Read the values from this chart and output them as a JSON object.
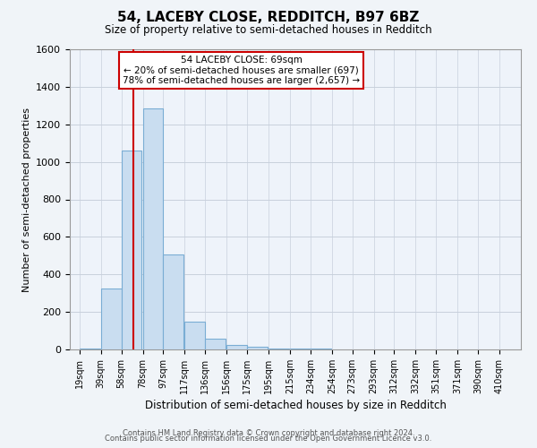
{
  "title": "54, LACEBY CLOSE, REDDITCH, B97 6BZ",
  "subtitle": "Size of property relative to semi-detached houses in Redditch",
  "xlabel": "Distribution of semi-detached houses by size in Redditch",
  "ylabel": "Number of semi-detached properties",
  "bar_left_edges": [
    19,
    39,
    58,
    78,
    97,
    117,
    136,
    156,
    175,
    195,
    215,
    234
  ],
  "bar_heights": [
    5,
    325,
    1060,
    1285,
    505,
    150,
    55,
    25,
    15,
    5,
    5,
    3
  ],
  "bar_widths": [
    19,
    19,
    19,
    19,
    19,
    19,
    19,
    19,
    19,
    19,
    19,
    19
  ],
  "bar_color": "#c9ddf0",
  "bar_edgecolor": "#7aadd4",
  "ylim": [
    0,
    1600
  ],
  "yticks": [
    0,
    200,
    400,
    600,
    800,
    1000,
    1200,
    1400,
    1600
  ],
  "xtick_positions": [
    19,
    39,
    58,
    78,
    97,
    117,
    136,
    156,
    175,
    195,
    215,
    234,
    254,
    273,
    293,
    312,
    332,
    351,
    371,
    390,
    410
  ],
  "xtick_labels": [
    "19sqm",
    "39sqm",
    "58sqm",
    "78sqm",
    "97sqm",
    "117sqm",
    "136sqm",
    "156sqm",
    "175sqm",
    "195sqm",
    "215sqm",
    "234sqm",
    "254sqm",
    "273sqm",
    "293sqm",
    "312sqm",
    "332sqm",
    "351sqm",
    "371sqm",
    "390sqm",
    "410sqm"
  ],
  "property_size": 69,
  "vline_color": "#cc0000",
  "annotation_line1": "54 LACEBY CLOSE: 69sqm",
  "annotation_line2": "← 20% of semi-detached houses are smaller (697)",
  "annotation_line3": "78% of semi-detached houses are larger (2,657) →",
  "annotation_box_facecolor": "#ffffff",
  "annotation_box_edgecolor": "#cc0000",
  "footer_line1": "Contains HM Land Registry data © Crown copyright and database right 2024.",
  "footer_line2": "Contains public sector information licensed under the Open Government Licence v3.0.",
  "background_color": "#f0f4f8",
  "plot_background_color": "#eef3fa",
  "grid_color": "#c8d0dc",
  "xlim_min": 10,
  "xlim_max": 430
}
